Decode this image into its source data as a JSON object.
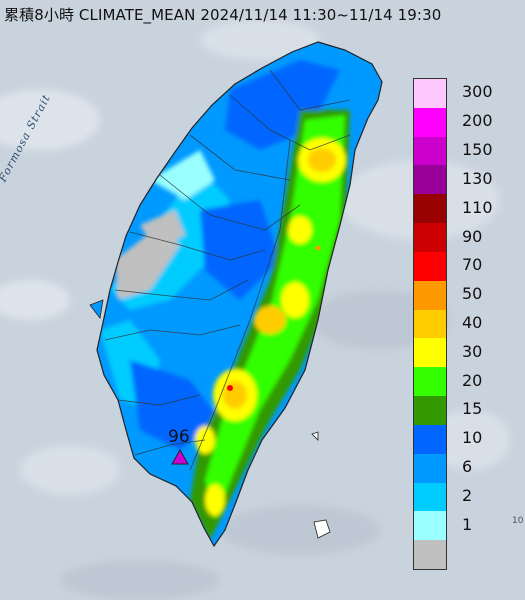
{
  "header": {
    "title": "累積8小時 CLIMATE_MEAN 2024/11/14 11:30~11/14 19:30"
  },
  "map": {
    "strait_label": "Formosa Strait",
    "max_station": {
      "value": "96",
      "marker": "triangle-marker-icon",
      "marker_color": "#d000d8"
    },
    "edge_text": "10"
  },
  "legend": {
    "items": [
      {
        "label": "300",
        "color": "#ffc8ff"
      },
      {
        "label": "200",
        "color": "#ff00ff"
      },
      {
        "label": "150",
        "color": "#cc00cc"
      },
      {
        "label": "130",
        "color": "#990099"
      },
      {
        "label": "110",
        "color": "#990000"
      },
      {
        "label": "90",
        "color": "#cc0000"
      },
      {
        "label": "70",
        "color": "#ff0000"
      },
      {
        "label": "50",
        "color": "#ff9900"
      },
      {
        "label": "40",
        "color": "#ffcc00"
      },
      {
        "label": "30",
        "color": "#ffff00"
      },
      {
        "label": "20",
        "color": "#33ff00"
      },
      {
        "label": "15",
        "color": "#339900"
      },
      {
        "label": "10",
        "color": "#0066ff"
      },
      {
        "label": "6",
        "color": "#0099ff"
      },
      {
        "label": "2",
        "color": "#00ccff"
      },
      {
        "label": "1",
        "color": "#99ffff"
      },
      {
        "label": "",
        "color": "#c0c0c0"
      }
    ]
  },
  "colors": {
    "sea": "#c9d3de",
    "cloud": "#e6ebf0"
  }
}
